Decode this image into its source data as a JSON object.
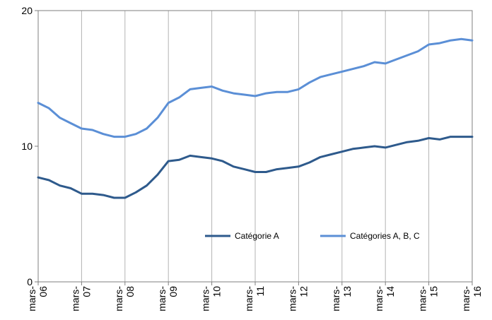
{
  "chart_data": {
    "type": "line",
    "title": "",
    "xlabel": "",
    "ylabel": "",
    "ylim": [
      0,
      20
    ],
    "y_ticks": [
      {
        "value": 0,
        "label": "0"
      },
      {
        "value": 10,
        "label": "10"
      },
      {
        "value": 20,
        "label": "20"
      }
    ],
    "x_ticks": [
      {
        "value": 2006,
        "line1": "mars-",
        "line2": "06"
      },
      {
        "value": 2007,
        "line1": "mars-",
        "line2": "07"
      },
      {
        "value": 2008,
        "line1": "mars-",
        "line2": "08"
      },
      {
        "value": 2009,
        "line1": "mars-",
        "line2": "09"
      },
      {
        "value": 2010,
        "line1": "mars-",
        "line2": "10"
      },
      {
        "value": 2011,
        "line1": "mars-",
        "line2": "11"
      },
      {
        "value": 2012,
        "line1": "mars-",
        "line2": "12"
      },
      {
        "value": 2013,
        "line1": "mars-",
        "line2": "13"
      },
      {
        "value": 2014,
        "line1": "mars-",
        "line2": "14"
      },
      {
        "value": 2015,
        "line1": "mars-",
        "line2": "15"
      },
      {
        "value": 2016,
        "line1": "mars-",
        "line2": "16"
      }
    ],
    "grid": "vertical",
    "legend_position": "bottom-right",
    "series": [
      {
        "name": "Catégorie A",
        "color": "#2e5a8c",
        "points": [
          [
            2006.0,
            7.7
          ],
          [
            2006.25,
            7.5
          ],
          [
            2006.5,
            7.1
          ],
          [
            2006.75,
            6.9
          ],
          [
            2007.0,
            6.5
          ],
          [
            2007.25,
            6.5
          ],
          [
            2007.5,
            6.4
          ],
          [
            2007.75,
            6.2
          ],
          [
            2008.0,
            6.2
          ],
          [
            2008.25,
            6.6
          ],
          [
            2008.5,
            7.1
          ],
          [
            2008.75,
            7.9
          ],
          [
            2009.0,
            8.9
          ],
          [
            2009.25,
            9.0
          ],
          [
            2009.5,
            9.3
          ],
          [
            2009.75,
            9.2
          ],
          [
            2010.0,
            9.1
          ],
          [
            2010.25,
            8.9
          ],
          [
            2010.5,
            8.5
          ],
          [
            2010.75,
            8.3
          ],
          [
            2011.0,
            8.1
          ],
          [
            2011.25,
            8.1
          ],
          [
            2011.5,
            8.3
          ],
          [
            2011.75,
            8.4
          ],
          [
            2012.0,
            8.5
          ],
          [
            2012.25,
            8.8
          ],
          [
            2012.5,
            9.2
          ],
          [
            2012.75,
            9.4
          ],
          [
            2013.0,
            9.6
          ],
          [
            2013.25,
            9.8
          ],
          [
            2013.5,
            9.9
          ],
          [
            2013.75,
            10.0
          ],
          [
            2014.0,
            9.9
          ],
          [
            2014.25,
            10.1
          ],
          [
            2014.5,
            10.3
          ],
          [
            2014.75,
            10.4
          ],
          [
            2015.0,
            10.6
          ],
          [
            2015.25,
            10.5
          ],
          [
            2015.5,
            10.7
          ],
          [
            2015.75,
            10.7
          ],
          [
            2016.0,
            10.7
          ]
        ]
      },
      {
        "name": "Catégories A, B, C",
        "color": "#5b8fd6",
        "points": [
          [
            2006.0,
            13.2
          ],
          [
            2006.25,
            12.8
          ],
          [
            2006.5,
            12.1
          ],
          [
            2006.75,
            11.7
          ],
          [
            2007.0,
            11.3
          ],
          [
            2007.25,
            11.2
          ],
          [
            2007.5,
            10.9
          ],
          [
            2007.75,
            10.7
          ],
          [
            2008.0,
            10.7
          ],
          [
            2008.25,
            10.9
          ],
          [
            2008.5,
            11.3
          ],
          [
            2008.75,
            12.1
          ],
          [
            2009.0,
            13.2
          ],
          [
            2009.25,
            13.6
          ],
          [
            2009.5,
            14.2
          ],
          [
            2009.75,
            14.3
          ],
          [
            2010.0,
            14.4
          ],
          [
            2010.25,
            14.1
          ],
          [
            2010.5,
            13.9
          ],
          [
            2010.75,
            13.8
          ],
          [
            2011.0,
            13.7
          ],
          [
            2011.25,
            13.9
          ],
          [
            2011.5,
            14.0
          ],
          [
            2011.75,
            14.0
          ],
          [
            2012.0,
            14.2
          ],
          [
            2012.25,
            14.7
          ],
          [
            2012.5,
            15.1
          ],
          [
            2012.75,
            15.3
          ],
          [
            2013.0,
            15.5
          ],
          [
            2013.25,
            15.7
          ],
          [
            2013.5,
            15.9
          ],
          [
            2013.75,
            16.2
          ],
          [
            2014.0,
            16.1
          ],
          [
            2014.25,
            16.4
          ],
          [
            2014.5,
            16.7
          ],
          [
            2014.75,
            17.0
          ],
          [
            2015.0,
            17.5
          ],
          [
            2015.25,
            17.6
          ],
          [
            2015.5,
            17.8
          ],
          [
            2015.75,
            17.9
          ],
          [
            2016.0,
            17.8
          ]
        ]
      }
    ]
  }
}
